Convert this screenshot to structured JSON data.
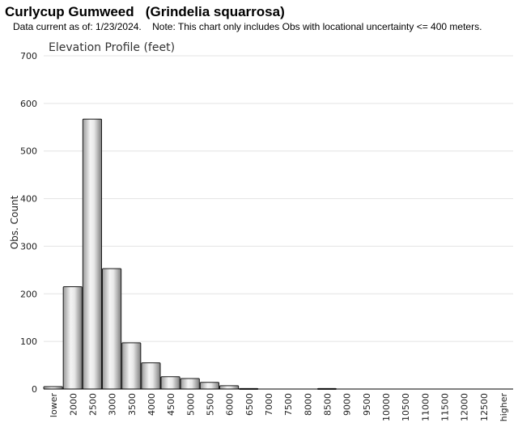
{
  "header": {
    "title": "Curlycup Gumweed   (Grindelia squarrosa)",
    "note": "Data current as of: 1/23/2024.    Note: This chart only includes Obs with locational uncertainty <= 400 meters."
  },
  "chart_data": {
    "type": "bar",
    "title": "Elevation Profile (feet)",
    "xlabel": "",
    "ylabel": "Obs. Count",
    "ylim": [
      0,
      700
    ],
    "yticks": [
      0,
      100,
      200,
      300,
      400,
      500,
      600,
      700
    ],
    "grid": true,
    "categories": [
      "lower",
      "2000",
      "2500",
      "3000",
      "3500",
      "4000",
      "4500",
      "5000",
      "5500",
      "6000",
      "6500",
      "7000",
      "7500",
      "8000",
      "8500",
      "9000",
      "9500",
      "10000",
      "10500",
      "11000",
      "11500",
      "12000",
      "12500",
      "higher"
    ],
    "values": [
      5,
      215,
      567,
      253,
      97,
      55,
      26,
      22,
      14,
      7,
      1,
      0,
      0,
      0,
      1,
      0,
      0,
      0,
      0,
      0,
      0,
      0,
      0,
      0
    ]
  },
  "colors": {
    "bar_edge": "#1a1a1a",
    "bar_light": "#f2f2f2",
    "bar_dark": "#8c8c8c",
    "grid": "#e3e3e3",
    "axis": "#000000"
  }
}
